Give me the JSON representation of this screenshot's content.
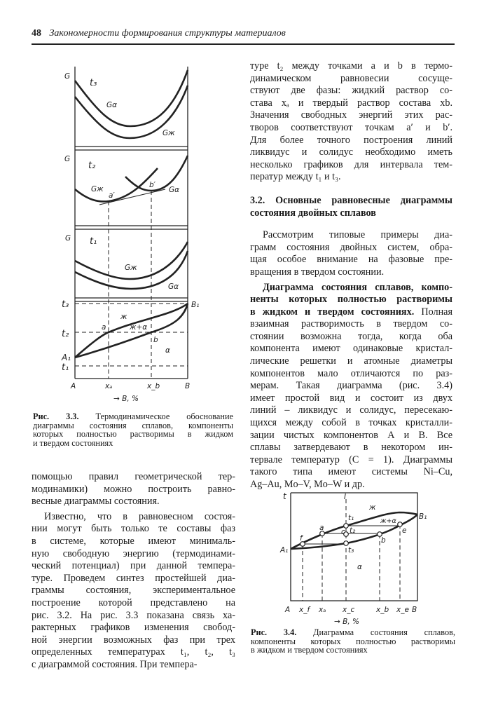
{
  "header": {
    "page_number": "48",
    "running_title": "Закономерности формирования структуры материалов"
  },
  "right_column": {
    "p1": [
      "туре t₂ между точками a и b в термо-",
      "динамическом равновесии сосуще-",
      "ствуют две фазы: жидкий раствор со-",
      "става xₐ и твердый раствор состава xb.",
      "Значения свободных энергий этих рас-",
      "творов соответствуют точкам a′ и b′.",
      "Для более точного построения линий",
      "ликвидус и солидус необходимо иметь",
      "несколько графиков для интервала тем-",
      "ператур между t₁ и t₃."
    ],
    "heading": [
      "3.2. Основные равновесные диаграммы",
      "состояния двойных сплавов"
    ],
    "p2": [
      "Рассмотрим типовые примеры диа-",
      "грамм состояния двойных систем, обра-",
      "щая особое внимание на фазовые пре-",
      "вращения в твердом состоянии."
    ],
    "p3_bold": [
      "Диаграмма состояния сплавов, компо-",
      "ненты которых полностью растворимы",
      "в жидком и твердом состояниях."
    ],
    "p3_rest_first": " Полная",
    "p3": [
      "взаимная растворимость в твердом со-",
      "стоянии возможна тогда, когда оба",
      "компонента имеют одинаковые кристал-",
      "лические решетки и атомные диаметры",
      "компонентов мало отличаются по раз-",
      "мерам. Такая диаграмма (рис. 3.4)",
      "имеет простой вид и состоит из двух",
      "линий – ликвидус и солидус, пересекаю-",
      "щихся между собой в точках кристалли-",
      "зации чистых компонентов А и В. Все",
      "сплавы затвердевают в некотором ин-",
      "тервале температур (C = 1). Диаграммы",
      "такого типа имеют системы Ni–Cu,",
      "Ag–Au, Mo–V, Mo–W и др."
    ]
  },
  "left_column": {
    "p1": [
      "помощью правил геометрической тер-",
      "модинамики) можно построить равно-",
      "весные диаграммы состояния."
    ],
    "p2": [
      "Известно, что в равновесном состоя-",
      "нии могут быть только те составы фаз",
      "в системе, которые имеют минималь-",
      "ную свободную энергию (термодинами-",
      "ческий потенциал) при данной темпера-",
      "туре. Проведем синтез простейшей диа-",
      "граммы состояния, экспериментальное",
      "построение которой представлено на",
      "рис. 3.2. На рис. 3.3 показана связь ха-",
      "рактерных графиков изменения свобод-",
      "ной энергии возможных фаз при трех",
      "определенных температурах t₁, t₂, t₃",
      "с диаграммой состояния. При темпера-"
    ]
  },
  "figure_3_3": {
    "caption_label": "Рис. 3.3.",
    "caption": [
      " Термодинамическое обоснование",
      "диаграммы состояния сплавов, компоненты",
      "которых полностью растворимы в жидком",
      "и твердом состояниях"
    ],
    "labels": {
      "G1": "G",
      "t3": "t₃",
      "Galpha1": "Gα",
      "Gzh1": "Gж",
      "G2": "G",
      "t2": "t₂",
      "Gzh2": "Gж",
      "a_prime": "a′",
      "b_prime": "b′",
      "Galpha2": "Gα",
      "G3": "G",
      "t1": "t₁",
      "Gzh3": "Gж",
      "Galpha3": "Gα",
      "axis_t3": "t₃",
      "axis_t2": "t₂",
      "A1": "A₁",
      "axis_t1": "t₁",
      "liquid": "ж",
      "two_phase": "ж+α",
      "a": "a",
      "b": "b",
      "alpha": "α",
      "B1": "B₁",
      "A": "A",
      "xa": "xₐ",
      "xb": "x_b",
      "B": "B",
      "x_axis": "→ B, %"
    }
  },
  "figure_3_4": {
    "caption_label": "Рис. 3.4.",
    "caption": [
      " Диаграмма состояния сплавов,",
      "компоненты которых полностью растворимы",
      "в жидком и твердом состояниях"
    ],
    "labels": {
      "t": "t",
      "I": "I",
      "liquid": "ж",
      "two_phase": "ж+α",
      "t1": "t₁",
      "t2": "t₂",
      "t3": "t₃",
      "c": "c",
      "a": "a",
      "f": "f",
      "b": "b",
      "e": "e",
      "A1": "A₁",
      "B1": "B₁",
      "alpha": "α",
      "A": "A",
      "xf": "x_f",
      "xa": "xₐ",
      "xc": "x_c",
      "xb": "x_b",
      "xe": "x_e",
      "B": "B",
      "x_axis": "→ B, %"
    }
  }
}
